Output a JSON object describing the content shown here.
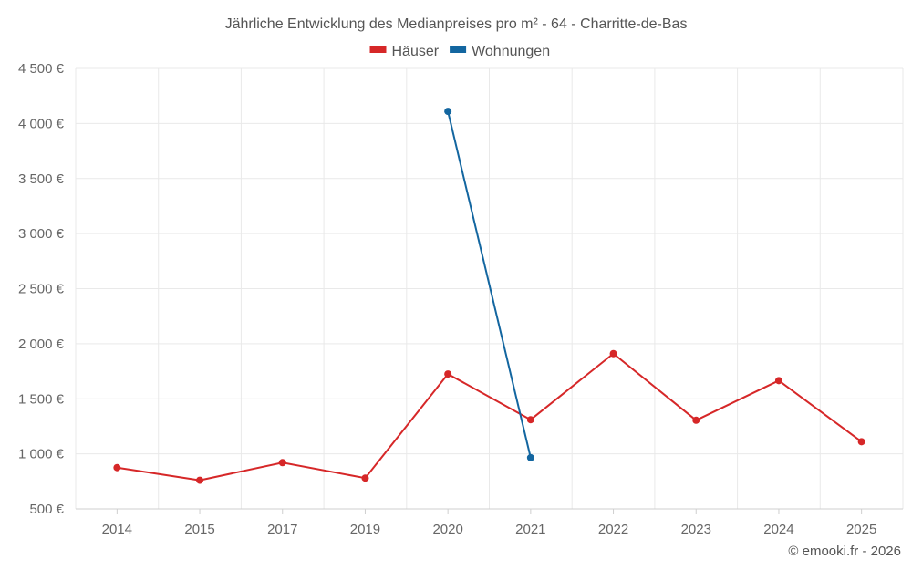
{
  "chart_data": {
    "type": "line",
    "title": "Jährliche Entwicklung des Medianpreises pro m² - 64 - Charritte-de-Bas",
    "xlabel": "",
    "ylabel": "",
    "categories": [
      "2014",
      "2015",
      "2017",
      "2019",
      "2020",
      "2021",
      "2022",
      "2023",
      "2024",
      "2025"
    ],
    "ylim": [
      500,
      4500
    ],
    "yticks": [
      500,
      1000,
      1500,
      2000,
      2500,
      3000,
      3500,
      4000,
      4500
    ],
    "ytick_labels": [
      "500 €",
      "1 000 €",
      "1 500 €",
      "2 000 €",
      "2 500 €",
      "3 000 €",
      "3 500 €",
      "4 000 €",
      "4 500 €"
    ],
    "grid": true,
    "legend_position": "top-center",
    "series": [
      {
        "name": "Häuser",
        "color": "#d62728",
        "values": [
          875,
          760,
          920,
          780,
          1725,
          1310,
          1910,
          1305,
          1665,
          1110
        ]
      },
      {
        "name": "Wohnungen",
        "color": "#1366a0",
        "values": [
          null,
          null,
          null,
          null,
          4110,
          965,
          null,
          null,
          null,
          null
        ]
      }
    ]
  },
  "credit": "© emooki.fr - 2026"
}
